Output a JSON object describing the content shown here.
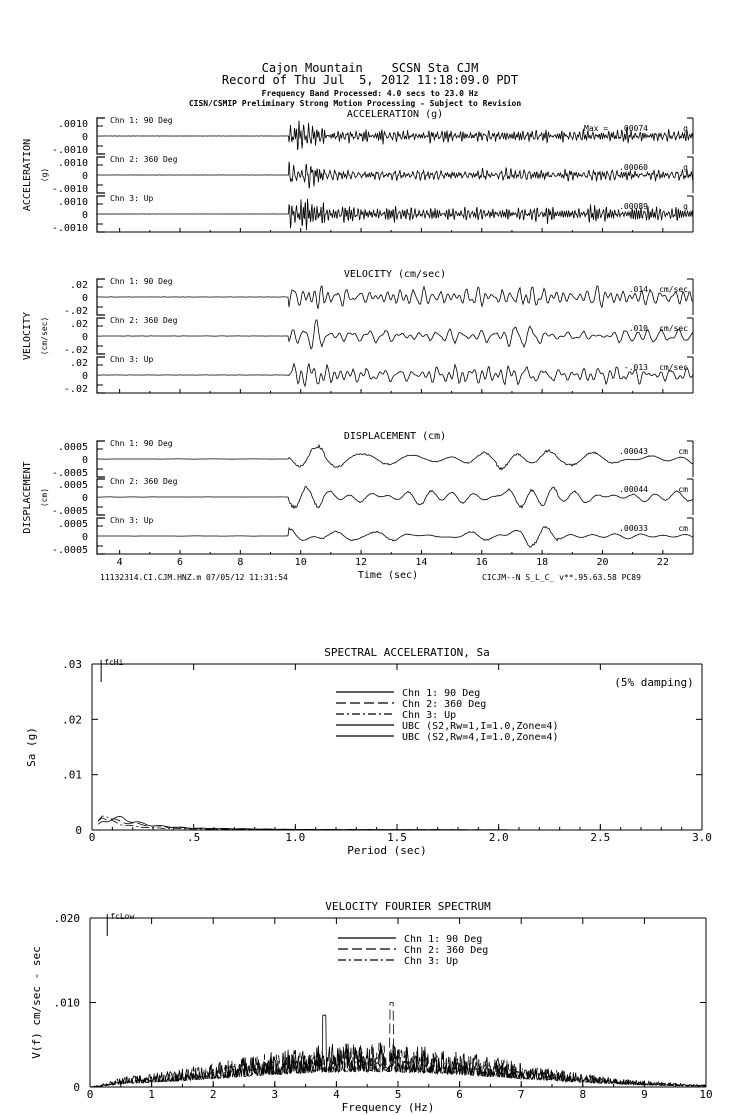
{
  "header": {
    "station_line": "Cajon Mountain    SCSN Sta CJM",
    "record_line": "Record of Thu Jul  5, 2012 11:18:09.0 PDT",
    "band_line": "Frequency Band Processed: 4.0 secs to 23.0 Hz",
    "disclaimer": "CISN/CSMIP Preliminary Strong Motion Processing - Subject to Revision"
  },
  "time_histories": {
    "xlabel": "Time (sec)",
    "xlim": [
      3.25,
      23
    ],
    "xticks": [
      "4",
      "6",
      "8",
      "10",
      "12",
      "14",
      "16",
      "18",
      "20",
      "22"
    ],
    "footer_left": "11132314.CI.CJM.HNZ.m 07/05/12 11:31:54",
    "footer_right": "CICJM--N  S_L_C_  v**.95.63.58  PC89",
    "max_label": "Max =",
    "panels": [
      {
        "title": "ACCELERATION (g)",
        "side_label": "ACCELERATION",
        "unit_label": "(g)",
        "unit": "g",
        "ytop": ".0010",
        "yzero": "0",
        "ybot": "-.0010",
        "channels": [
          {
            "name": "Chn 1: 90 Deg",
            "peak": ".00074"
          },
          {
            "name": "Chn 2: 360 Deg",
            "peak": ".00060"
          },
          {
            "name": "Chn 3: Up",
            "peak": ".00089"
          }
        ]
      },
      {
        "title": "VELOCITY (cm/sec)",
        "side_label": "VELOCITY",
        "unit_label": "(cm/sec)",
        "unit": "cm/sec",
        "ytop": ".02",
        "yzero": "0",
        "ybot": "-.02",
        "channels": [
          {
            "name": "Chn 1: 90 Deg",
            "peak": ".014"
          },
          {
            "name": "Chn 2: 360 Deg",
            "peak": ".010"
          },
          {
            "name": "Chn 3: Up",
            "peak": "-.013"
          }
        ]
      },
      {
        "title": "DISPLACEMENT (cm)",
        "side_label": "DISPLACEMENT",
        "unit_label": "(cm)",
        "unit": "cm",
        "ytop": ".0005",
        "yzero": "0",
        "ybot": "-.0005",
        "channels": [
          {
            "name": "Chn 1: 90 Deg",
            "peak": ".00043"
          },
          {
            "name": "Chn 2: 360 Deg",
            "peak": ".00044"
          },
          {
            "name": "Chn 3: Up",
            "peak": ".00033"
          }
        ]
      }
    ]
  },
  "chart_data": [
    {
      "type": "line",
      "title": "SPECTRAL ACCELERATION, Sa",
      "xlabel": "Period (sec)",
      "ylabel": "Sa (g)",
      "xlim": [
        0,
        3.0
      ],
      "ylim": [
        0,
        0.03
      ],
      "xticks": [
        "0",
        ".5",
        "1.0",
        "1.5",
        "2.0",
        "2.5",
        "3.0"
      ],
      "yticks": [
        "0",
        ".01",
        ".02",
        ".03"
      ],
      "annotation": "(5% damping)",
      "marker": "fcHi",
      "legend_position": "top-center",
      "series": [
        {
          "name": "Chn 1: 90 Deg",
          "style": "solid",
          "x": [
            0.05,
            0.1,
            0.15,
            0.2,
            0.3,
            0.5,
            1.0,
            2.0,
            3.0
          ],
          "y": [
            0.0015,
            0.002,
            0.0022,
            0.0015,
            0.0008,
            0.0003,
            0.0001,
            3e-05,
            1e-05
          ]
        },
        {
          "name": "Chn 2: 360 Deg",
          "style": "dashed",
          "x": [
            0.05,
            0.1,
            0.15,
            0.2,
            0.3,
            0.5,
            1.0,
            2.0,
            3.0
          ],
          "y": [
            0.0025,
            0.0018,
            0.0015,
            0.0012,
            0.0007,
            0.0003,
            0.0001,
            3e-05,
            1e-05
          ]
        },
        {
          "name": "Chn 3: Up",
          "style": "dash-dot",
          "x": [
            0.05,
            0.1,
            0.15,
            0.2,
            0.3,
            0.5,
            1.0,
            2.0,
            3.0
          ],
          "y": [
            0.003,
            0.0015,
            0.001,
            0.0007,
            0.0004,
            0.0002,
            5e-05,
            2e-05,
            1e-05
          ]
        },
        {
          "name": "UBC (S2,Rw=1,I=1.0,Zone=4)",
          "style": "solid"
        },
        {
          "name": "UBC (S2,Rw=4,I=1.0,Zone=4)",
          "style": "solid"
        }
      ]
    },
    {
      "type": "line",
      "title": "VELOCITY FOURIER SPECTRUM",
      "xlabel": "Frequency (Hz)",
      "ylabel": "V(f)   cm/sec - sec",
      "xlim": [
        0,
        10
      ],
      "ylim": [
        0,
        0.02
      ],
      "xticks": [
        "0",
        "1",
        "2",
        "3",
        "4",
        "5",
        "6",
        "7",
        "8",
        "9",
        "10"
      ],
      "yticks": [
        "0",
        ".010",
        ".020"
      ],
      "marker": "fcLow",
      "legend_position": "top-center",
      "series": [
        {
          "name": "Chn 1: 90 Deg",
          "style": "solid"
        },
        {
          "name": "Chn 2: 360 Deg",
          "style": "dashed"
        },
        {
          "name": "Chn 3: Up",
          "style": "dash-dot"
        }
      ],
      "peaks": {
        "approx_max": 0.01,
        "at_hz": 4.9
      }
    }
  ]
}
